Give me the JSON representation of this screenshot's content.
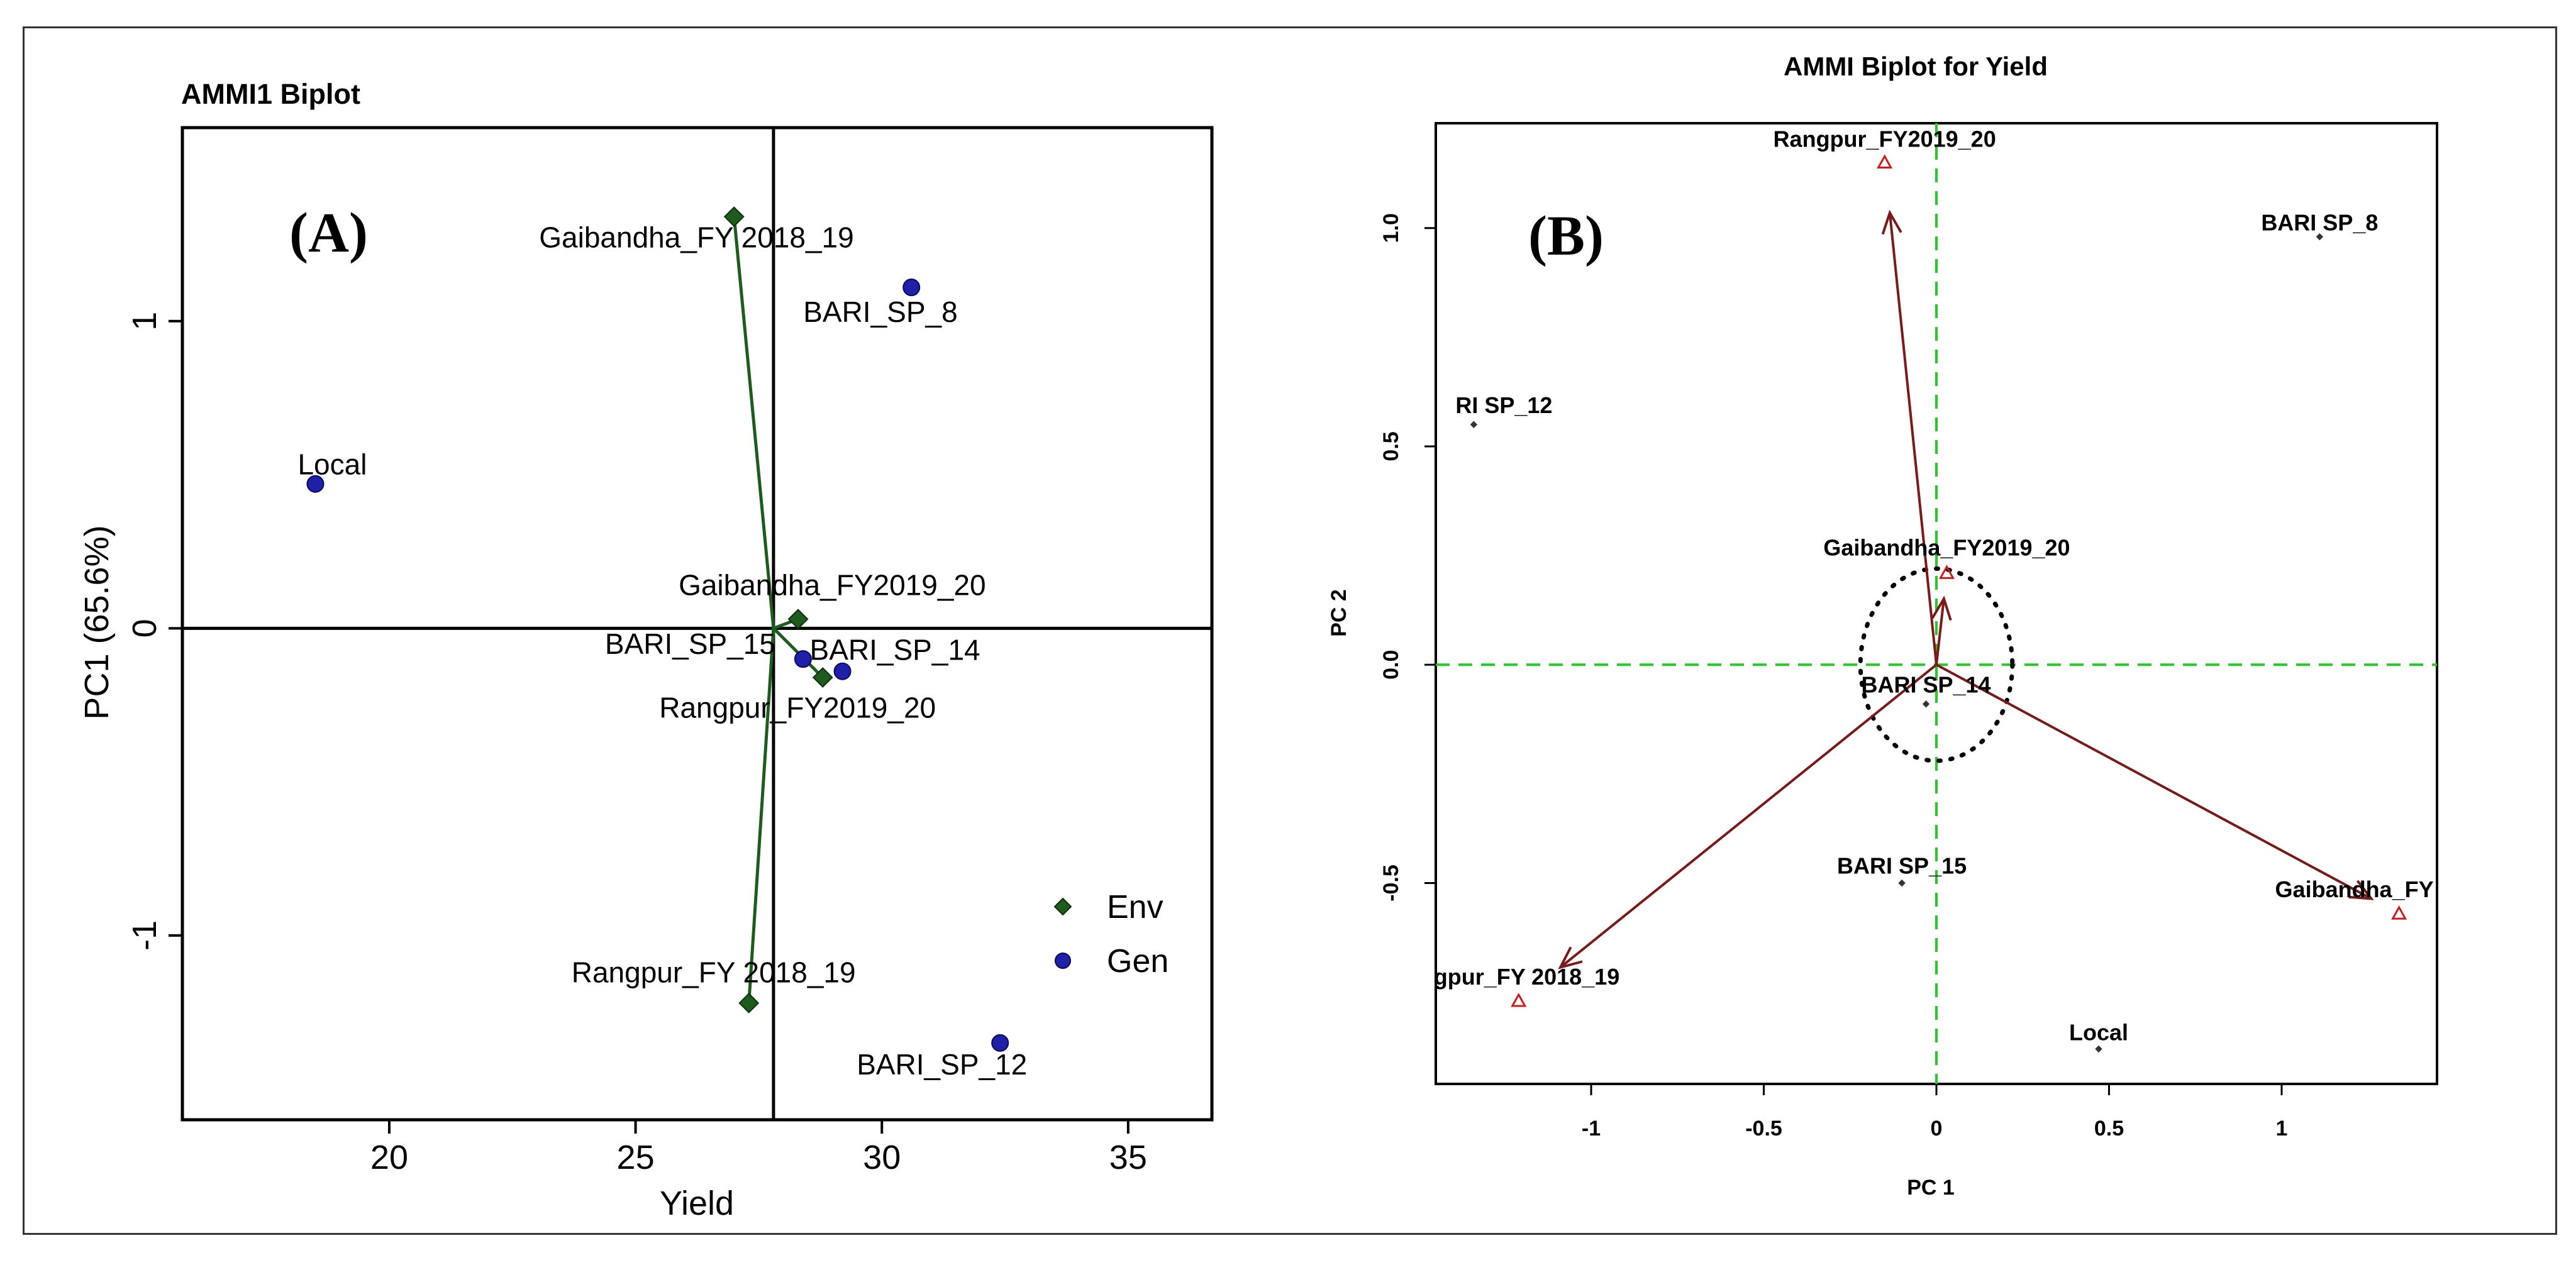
{
  "chart_data": [
    {
      "panel_label": "(A)",
      "type": "scatter",
      "title": "AMMI1 Biplot",
      "xlabel": "Yield",
      "ylabel": "PC1 (65.6%)",
      "xlim": [
        15.8,
        36.7
      ],
      "ylim": [
        -1.6,
        1.63
      ],
      "xticks": [
        20,
        25,
        30,
        35
      ],
      "yticks": [
        -1,
        0,
        1
      ],
      "reference_lines": {
        "x": 27.8,
        "y": 0
      },
      "legend": {
        "position": "bottom-right",
        "entries": [
          "Env",
          "Gen"
        ]
      },
      "colors": {
        "env": "#1e5c1e",
        "gen": "#1f1fa8"
      },
      "env_center": [
        27.8,
        0
      ],
      "series": [
        {
          "name": "Env",
          "marker": "diamond",
          "points": [
            {
              "label": "Gaibandha_FY 2018_19",
              "x": 27.0,
              "y": 1.34
            },
            {
              "label": "Gaibandha_FY2019_20",
              "x": 28.3,
              "y": 0.03
            },
            {
              "label": "Rangpur_FY2019_20",
              "x": 28.8,
              "y": -0.16
            },
            {
              "label": "Rangpur_FY 2018_19",
              "x": 27.3,
              "y": -1.22
            }
          ]
        },
        {
          "name": "Gen",
          "marker": "circle",
          "points": [
            {
              "label": "Local",
              "x": 18.5,
              "y": 0.47
            },
            {
              "label": "BARI_SP_8",
              "x": 30.6,
              "y": 1.11
            },
            {
              "label": "BARI_SP_15",
              "x": 28.4,
              "y": -0.1
            },
            {
              "label": "BARI_SP_14",
              "x": 29.2,
              "y": -0.14
            },
            {
              "label": "BARI_SP_12",
              "x": 32.4,
              "y": -1.35
            }
          ]
        }
      ]
    },
    {
      "panel_label": "(B)",
      "type": "scatter",
      "title": "AMMI Biplot for Yield",
      "xlabel": "PC 1",
      "ylabel": "PC 2",
      "xlim": [
        -1.45,
        1.45
      ],
      "ylim": [
        -0.96,
        1.24
      ],
      "xticks": [
        -1.0,
        -0.5,
        0.0,
        0.5,
        1.0
      ],
      "ytick_labels": [
        "-0.5",
        "0.0",
        "0.5",
        "1.0"
      ],
      "ytick_values": [
        -0.5,
        0.0,
        0.5,
        1.0
      ],
      "circle_radius": 0.22,
      "colors": {
        "env": "#cc1a1a",
        "gen": "#1f1fa8",
        "vector": "#7a1a1a",
        "ref": "#22cc22"
      },
      "environments": [
        {
          "label": "Rangpur_FY2019_20",
          "x": -0.15,
          "y": 1.15
        },
        {
          "label": "Gaibandha_FY2019_20",
          "x": 0.03,
          "y": 0.21
        },
        {
          "label": "Gaibandha_FY",
          "x": 1.34,
          "y": -0.57
        },
        {
          "label": "gpur_FY 2018_19",
          "x": -1.21,
          "y": -0.77
        }
      ],
      "genotypes": [
        {
          "label": "BARI SP_8",
          "x": 1.11,
          "y": 0.98
        },
        {
          "label": "RI SP_12",
          "x": -1.34,
          "y": 0.55
        },
        {
          "label": "BARI SP_14",
          "x": -0.03,
          "y": -0.09
        },
        {
          "label": "BARI SP_15",
          "x": -0.1,
          "y": -0.5
        },
        {
          "label": "Local",
          "x": 0.47,
          "y": -0.88
        }
      ]
    }
  ]
}
